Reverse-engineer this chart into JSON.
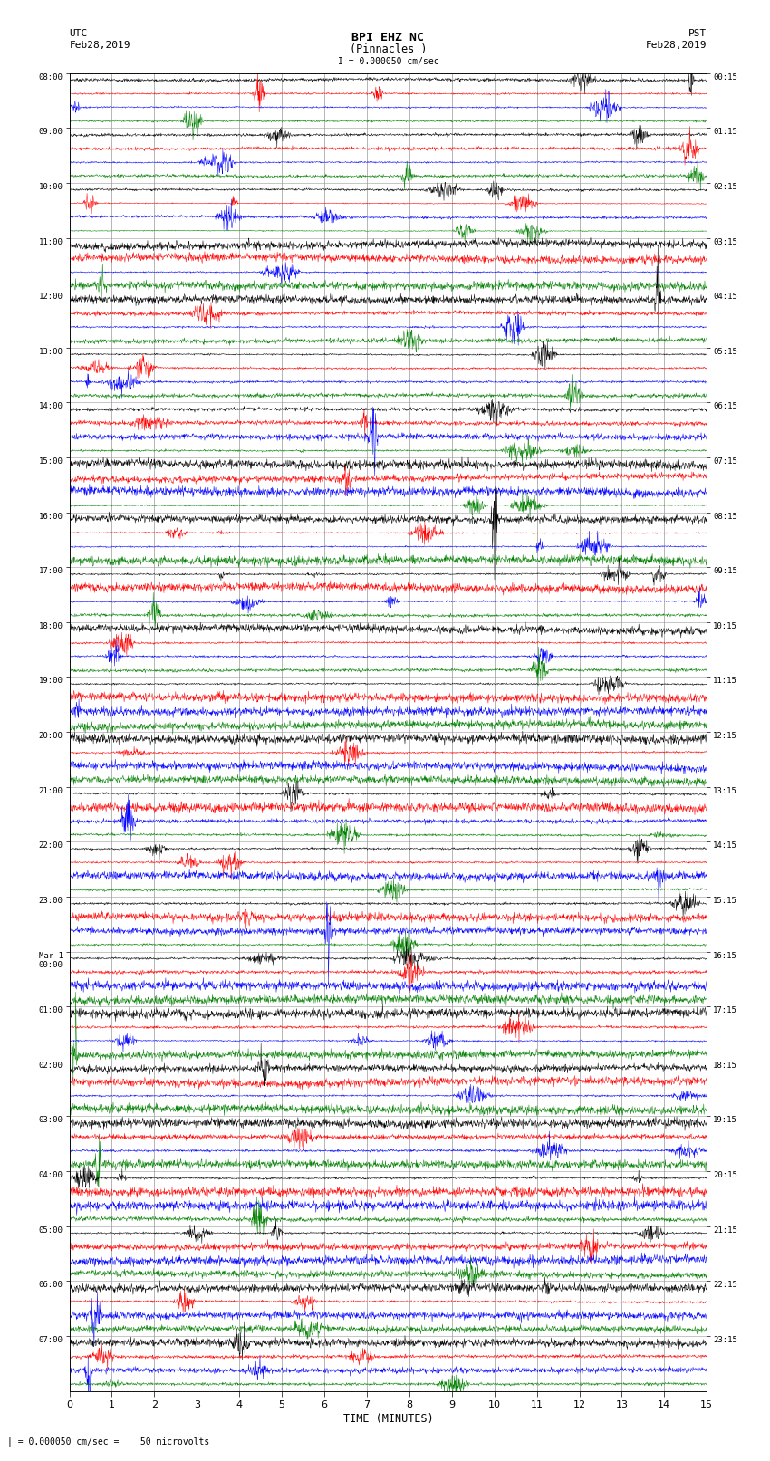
{
  "title_line1": "BPI EHZ NC",
  "title_line2": "(Pinnacles )",
  "scale_text": "I = 0.000050 cm/sec",
  "bottom_text": "| = 0.000050 cm/sec =    50 microvolts",
  "left_label": "UTC",
  "right_label": "PST",
  "left_date": "Feb28,2019",
  "right_date": "Feb28,2019",
  "xlabel": "TIME (MINUTES)",
  "xmin": 0,
  "xmax": 15,
  "bg_color": "#ffffff",
  "grid_color": "#999999",
  "trace_colors": [
    "black",
    "red",
    "blue",
    "green"
  ],
  "left_times": [
    "08:00",
    "09:00",
    "10:00",
    "11:00",
    "12:00",
    "13:00",
    "14:00",
    "15:00",
    "16:00",
    "17:00",
    "18:00",
    "19:00",
    "20:00",
    "21:00",
    "22:00",
    "23:00",
    "Mar 1\n00:00",
    "01:00",
    "02:00",
    "03:00",
    "04:00",
    "05:00",
    "06:00",
    "07:00"
  ],
  "right_times": [
    "00:15",
    "01:15",
    "02:15",
    "03:15",
    "04:15",
    "05:15",
    "06:15",
    "07:15",
    "08:15",
    "09:15",
    "10:15",
    "11:15",
    "12:15",
    "13:15",
    "14:15",
    "15:15",
    "16:15",
    "17:15",
    "18:15",
    "19:15",
    "20:15",
    "21:15",
    "22:15",
    "23:15"
  ],
  "n_groups": 24,
  "traces_per_group": 4,
  "noise_base": 0.1,
  "figsize": [
    8.5,
    16.13
  ],
  "dpi": 100
}
